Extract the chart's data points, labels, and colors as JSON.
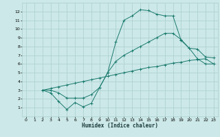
{
  "xlabel": "Humidex (Indice chaleur)",
  "bg_color": "#cce8e8",
  "grid_color": "#aacece",
  "line_color": "#1a7a6e",
  "xlim": [
    -0.5,
    23.5
  ],
  "ylim": [
    0,
    13
  ],
  "xticks": [
    0,
    1,
    2,
    3,
    4,
    5,
    6,
    7,
    8,
    9,
    10,
    11,
    12,
    13,
    14,
    15,
    16,
    17,
    18,
    19,
    20,
    21,
    22,
    23
  ],
  "yticks": [
    1,
    2,
    3,
    4,
    5,
    6,
    7,
    8,
    9,
    10,
    11,
    12
  ],
  "line1_x": [
    2,
    3,
    4,
    5,
    6,
    7,
    8,
    9,
    10,
    11,
    12,
    13,
    14,
    15,
    16,
    17,
    18,
    19,
    20,
    21,
    22,
    23
  ],
  "line1_y": [
    3.0,
    2.7,
    1.7,
    0.8,
    1.6,
    1.1,
    1.5,
    3.3,
    5.0,
    8.5,
    11.0,
    11.5,
    12.2,
    12.1,
    11.7,
    11.5,
    11.5,
    8.7,
    7.8,
    6.6,
    6.0,
    6.0
  ],
  "line2_x": [
    2,
    3,
    4,
    5,
    6,
    7,
    8,
    9,
    10,
    11,
    12,
    13,
    14,
    15,
    16,
    17,
    18,
    19,
    20,
    21,
    22,
    23
  ],
  "line2_y": [
    3.0,
    3.2,
    3.4,
    3.6,
    3.8,
    4.0,
    4.2,
    4.4,
    4.6,
    4.8,
    5.0,
    5.2,
    5.4,
    5.6,
    5.7,
    5.9,
    6.1,
    6.2,
    6.4,
    6.5,
    6.6,
    6.0
  ],
  "line3_x": [
    2,
    3,
    4,
    5,
    6,
    7,
    8,
    9,
    10,
    11,
    12,
    13,
    14,
    15,
    16,
    17,
    18,
    19,
    20,
    21,
    22,
    23
  ],
  "line3_y": [
    3.0,
    3.0,
    2.7,
    2.1,
    2.1,
    2.1,
    2.5,
    3.3,
    5.0,
    6.3,
    7.0,
    7.5,
    8.0,
    8.5,
    9.0,
    9.5,
    9.5,
    8.8,
    7.8,
    7.7,
    6.8,
    6.7
  ]
}
